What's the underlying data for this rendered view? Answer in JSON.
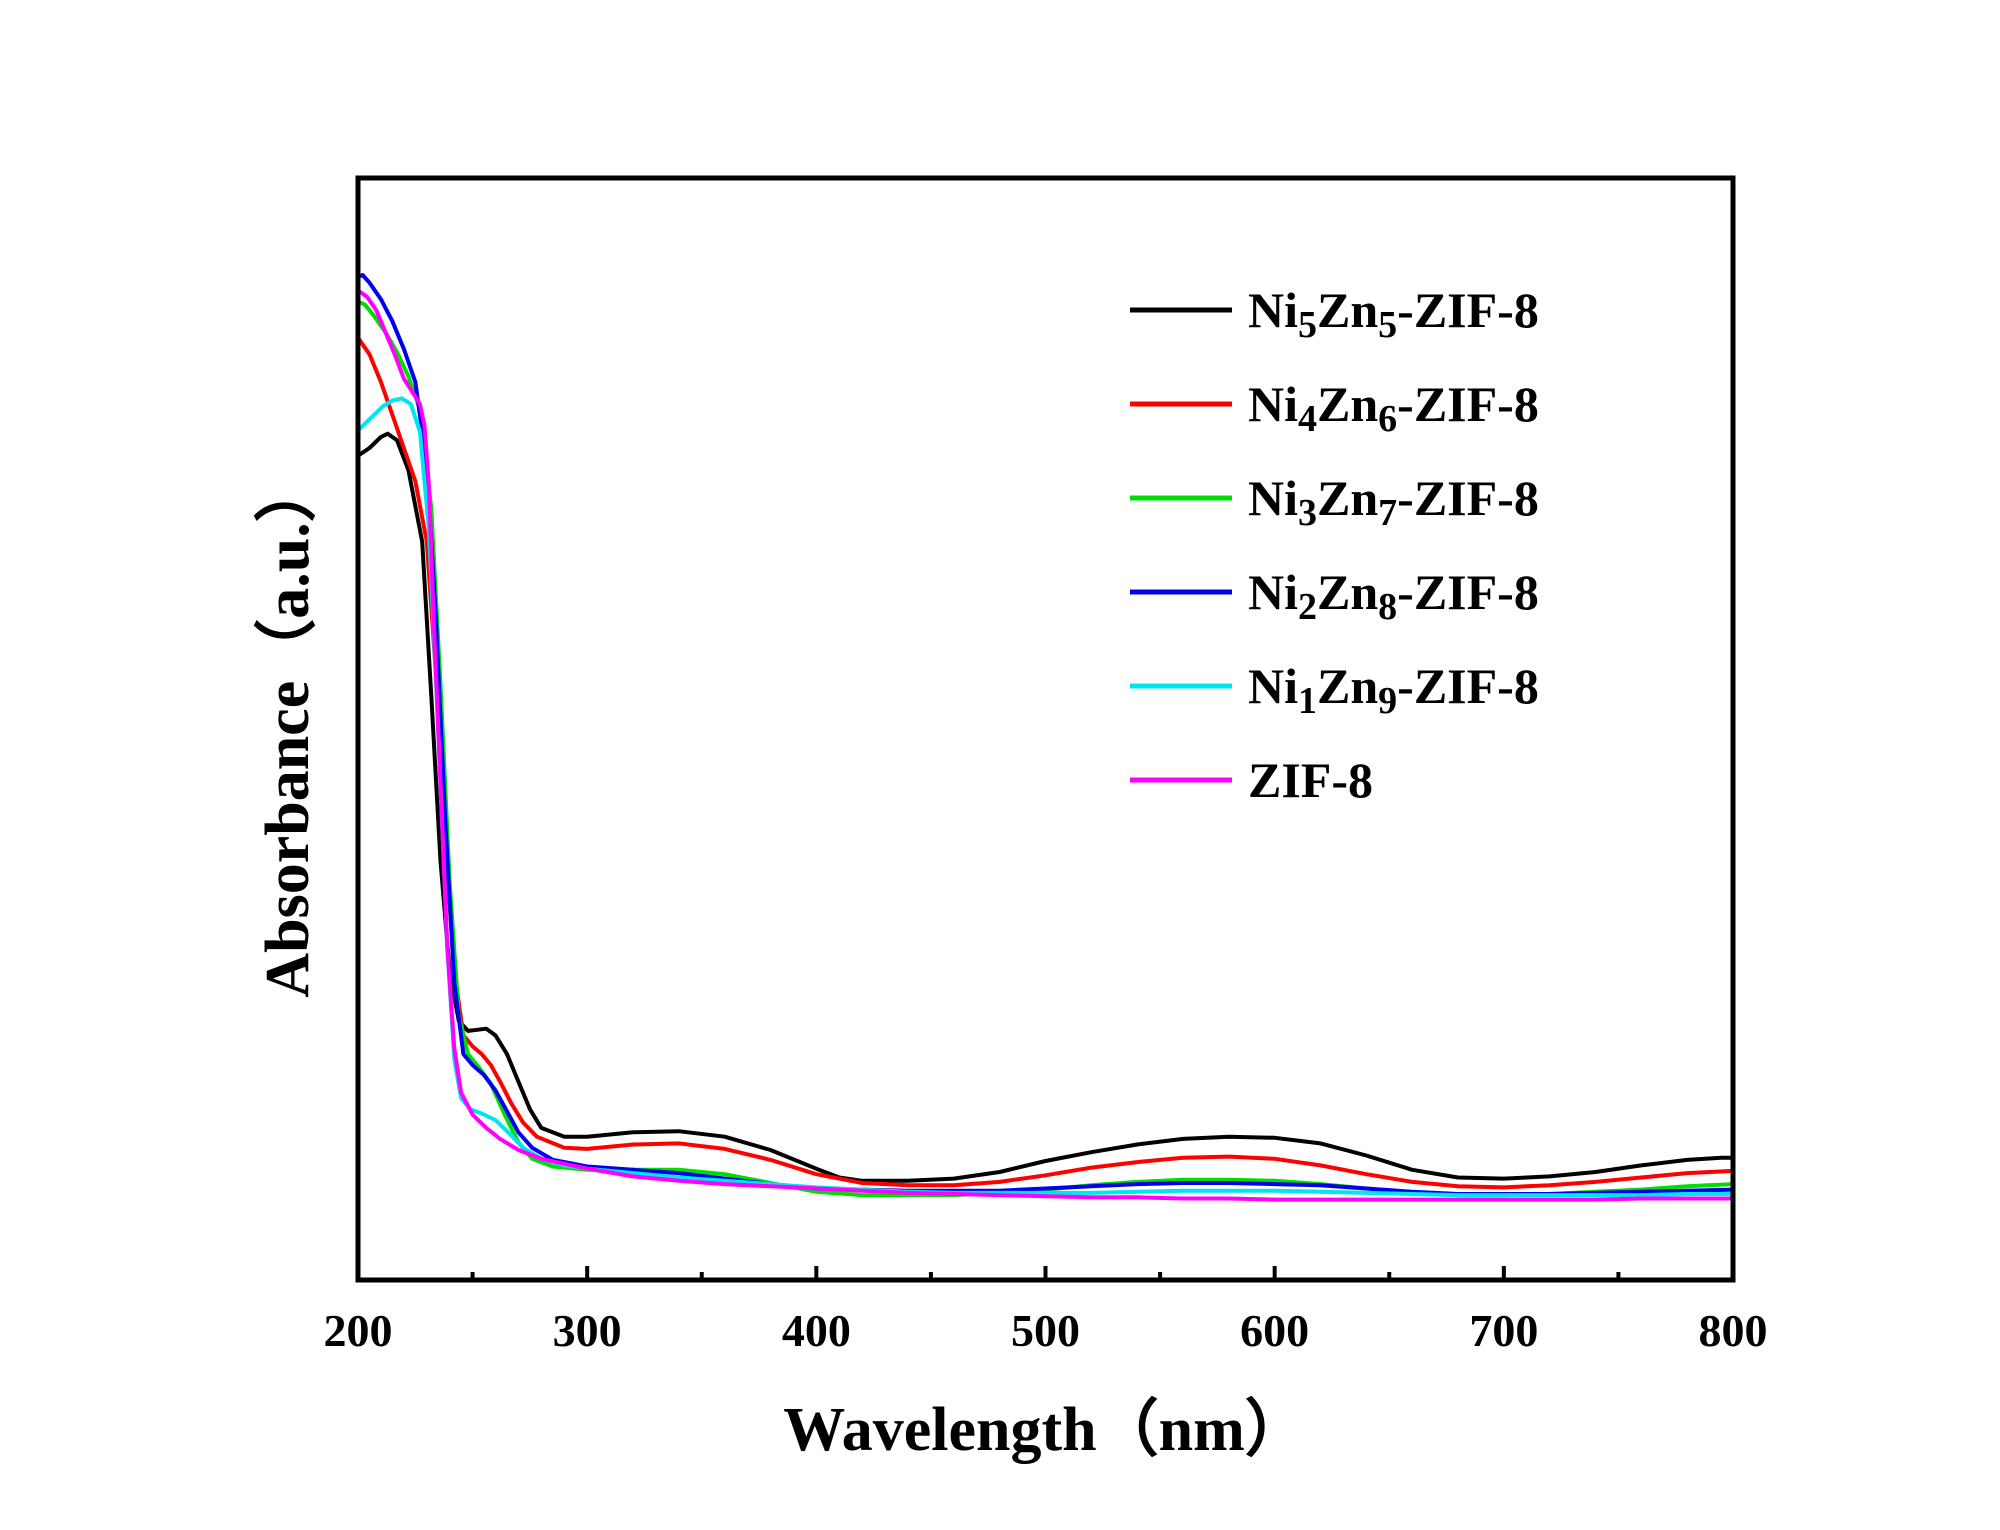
{
  "chart_data": {
    "type": "line",
    "xlabel": "Wavelength（nm）",
    "ylabel": "Absorbance（a.u.）",
    "xlim": [
      200,
      800
    ],
    "ylim": [
      0,
      1
    ],
    "x_ticks": [
      "200",
      "300",
      "400",
      "500",
      "600",
      "700",
      "800"
    ],
    "y_ticks": [],
    "legend_position": "top-right",
    "series": [
      {
        "name": "Ni5Zn5-ZIF-8",
        "label_parts": [
          "Ni",
          "5",
          "Zn",
          "5",
          "-ZIF-8"
        ],
        "color": "#000000",
        "points": [
          [
            200,
            0.748
          ],
          [
            205,
            0.755
          ],
          [
            210,
            0.765
          ],
          [
            213,
            0.768
          ],
          [
            217,
            0.762
          ],
          [
            222,
            0.735
          ],
          [
            228,
            0.67
          ],
          [
            232,
            0.53
          ],
          [
            236,
            0.38
          ],
          [
            240,
            0.28
          ],
          [
            244,
            0.235
          ],
          [
            248,
            0.226
          ],
          [
            252,
            0.227
          ],
          [
            256,
            0.228
          ],
          [
            260,
            0.222
          ],
          [
            265,
            0.205
          ],
          [
            270,
            0.18
          ],
          [
            275,
            0.155
          ],
          [
            280,
            0.138
          ],
          [
            290,
            0.13
          ],
          [
            300,
            0.13
          ],
          [
            320,
            0.134
          ],
          [
            340,
            0.135
          ],
          [
            360,
            0.13
          ],
          [
            380,
            0.118
          ],
          [
            400,
            0.101
          ],
          [
            410,
            0.093
          ],
          [
            420,
            0.09
          ],
          [
            440,
            0.09
          ],
          [
            460,
            0.092
          ],
          [
            480,
            0.098
          ],
          [
            500,
            0.108
          ],
          [
            520,
            0.116
          ],
          [
            540,
            0.123
          ],
          [
            560,
            0.128
          ],
          [
            580,
            0.13
          ],
          [
            600,
            0.129
          ],
          [
            620,
            0.124
          ],
          [
            640,
            0.113
          ],
          [
            660,
            0.1
          ],
          [
            680,
            0.093
          ],
          [
            700,
            0.092
          ],
          [
            720,
            0.094
          ],
          [
            740,
            0.098
          ],
          [
            760,
            0.104
          ],
          [
            780,
            0.109
          ],
          [
            795,
            0.111
          ],
          [
            800,
            0.111
          ]
        ]
      },
      {
        "name": "Ni4Zn6-ZIF-8",
        "label_parts": [
          "Ni",
          "4",
          "Zn",
          "6",
          "-ZIF-8"
        ],
        "color": "#ff0000",
        "points": [
          [
            200,
            0.855
          ],
          [
            205,
            0.84
          ],
          [
            210,
            0.815
          ],
          [
            215,
            0.785
          ],
          [
            220,
            0.755
          ],
          [
            225,
            0.725
          ],
          [
            230,
            0.67
          ],
          [
            234,
            0.55
          ],
          [
            238,
            0.4
          ],
          [
            242,
            0.28
          ],
          [
            246,
            0.222
          ],
          [
            250,
            0.212
          ],
          [
            254,
            0.205
          ],
          [
            258,
            0.195
          ],
          [
            262,
            0.18
          ],
          [
            267,
            0.16
          ],
          [
            272,
            0.143
          ],
          [
            278,
            0.13
          ],
          [
            290,
            0.12
          ],
          [
            300,
            0.119
          ],
          [
            320,
            0.123
          ],
          [
            340,
            0.124
          ],
          [
            360,
            0.119
          ],
          [
            380,
            0.109
          ],
          [
            400,
            0.096
          ],
          [
            420,
            0.088
          ],
          [
            440,
            0.086
          ],
          [
            460,
            0.086
          ],
          [
            480,
            0.089
          ],
          [
            500,
            0.095
          ],
          [
            520,
            0.102
          ],
          [
            540,
            0.107
          ],
          [
            560,
            0.111
          ],
          [
            580,
            0.112
          ],
          [
            600,
            0.11
          ],
          [
            620,
            0.104
          ],
          [
            640,
            0.096
          ],
          [
            660,
            0.089
          ],
          [
            680,
            0.085
          ],
          [
            700,
            0.084
          ],
          [
            720,
            0.086
          ],
          [
            740,
            0.089
          ],
          [
            760,
            0.093
          ],
          [
            780,
            0.097
          ],
          [
            800,
            0.099
          ]
        ]
      },
      {
        "name": "Ni3Zn7-ZIF-8",
        "label_parts": [
          "Ni",
          "3",
          "Zn",
          "7",
          "-ZIF-8"
        ],
        "color": "#00dd00",
        "points": [
          [
            200,
            0.888
          ],
          [
            203,
            0.885
          ],
          [
            207,
            0.875
          ],
          [
            212,
            0.86
          ],
          [
            217,
            0.842
          ],
          [
            222,
            0.82
          ],
          [
            227,
            0.79
          ],
          [
            232,
            0.7
          ],
          [
            236,
            0.54
          ],
          [
            240,
            0.36
          ],
          [
            244,
            0.24
          ],
          [
            248,
            0.205
          ],
          [
            252,
            0.195
          ],
          [
            258,
            0.178
          ],
          [
            264,
            0.15
          ],
          [
            270,
            0.125
          ],
          [
            276,
            0.11
          ],
          [
            285,
            0.103
          ],
          [
            300,
            0.1
          ],
          [
            320,
            0.1
          ],
          [
            340,
            0.1
          ],
          [
            360,
            0.096
          ],
          [
            380,
            0.088
          ],
          [
            400,
            0.08
          ],
          [
            420,
            0.077
          ],
          [
            440,
            0.077
          ],
          [
            460,
            0.077
          ],
          [
            480,
            0.079
          ],
          [
            500,
            0.082
          ],
          [
            520,
            0.086
          ],
          [
            540,
            0.089
          ],
          [
            560,
            0.091
          ],
          [
            580,
            0.091
          ],
          [
            600,
            0.09
          ],
          [
            620,
            0.087
          ],
          [
            640,
            0.083
          ],
          [
            660,
            0.079
          ],
          [
            680,
            0.077
          ],
          [
            700,
            0.077
          ],
          [
            720,
            0.078
          ],
          [
            740,
            0.08
          ],
          [
            760,
            0.082
          ],
          [
            780,
            0.085
          ],
          [
            800,
            0.087
          ]
        ]
      },
      {
        "name": "Ni2Zn8-ZIF-8",
        "label_parts": [
          "Ni",
          "2",
          "Zn",
          "8",
          "-ZIF-8"
        ],
        "color": "#0000ee",
        "points": [
          [
            200,
            0.91
          ],
          [
            202,
            0.912
          ],
          [
            205,
            0.905
          ],
          [
            210,
            0.89
          ],
          [
            215,
            0.87
          ],
          [
            220,
            0.845
          ],
          [
            225,
            0.815
          ],
          [
            230,
            0.74
          ],
          [
            234,
            0.6
          ],
          [
            238,
            0.42
          ],
          [
            242,
            0.27
          ],
          [
            246,
            0.205
          ],
          [
            250,
            0.195
          ],
          [
            255,
            0.186
          ],
          [
            260,
            0.172
          ],
          [
            265,
            0.153
          ],
          [
            270,
            0.134
          ],
          [
            276,
            0.12
          ],
          [
            285,
            0.109
          ],
          [
            300,
            0.103
          ],
          [
            320,
            0.1
          ],
          [
            340,
            0.097
          ],
          [
            360,
            0.092
          ],
          [
            380,
            0.087
          ],
          [
            400,
            0.083
          ],
          [
            420,
            0.082
          ],
          [
            440,
            0.081
          ],
          [
            460,
            0.081
          ],
          [
            480,
            0.081
          ],
          [
            500,
            0.083
          ],
          [
            520,
            0.085
          ],
          [
            540,
            0.087
          ],
          [
            560,
            0.088
          ],
          [
            580,
            0.088
          ],
          [
            600,
            0.087
          ],
          [
            620,
            0.086
          ],
          [
            640,
            0.083
          ],
          [
            660,
            0.08
          ],
          [
            680,
            0.078
          ],
          [
            700,
            0.078
          ],
          [
            720,
            0.078
          ],
          [
            740,
            0.079
          ],
          [
            760,
            0.08
          ],
          [
            780,
            0.081
          ],
          [
            800,
            0.082
          ]
        ]
      },
      {
        "name": "Ni1Zn9-ZIF-8",
        "label_parts": [
          "Ni",
          "1",
          "Zn",
          "9",
          "-ZIF-8"
        ],
        "color": "#00e5ee",
        "points": [
          [
            200,
            0.771
          ],
          [
            203,
            0.777
          ],
          [
            207,
            0.785
          ],
          [
            211,
            0.793
          ],
          [
            215,
            0.798
          ],
          [
            219,
            0.8
          ],
          [
            223,
            0.795
          ],
          [
            227,
            0.77
          ],
          [
            231,
            0.68
          ],
          [
            235,
            0.5
          ],
          [
            239,
            0.3
          ],
          [
            242,
            0.2
          ],
          [
            245,
            0.165
          ],
          [
            249,
            0.155
          ],
          [
            254,
            0.151
          ],
          [
            260,
            0.145
          ],
          [
            266,
            0.133
          ],
          [
            272,
            0.12
          ],
          [
            280,
            0.11
          ],
          [
            290,
            0.104
          ],
          [
            300,
            0.101
          ],
          [
            320,
            0.097
          ],
          [
            340,
            0.093
          ],
          [
            360,
            0.09
          ],
          [
            380,
            0.087
          ],
          [
            400,
            0.084
          ],
          [
            420,
            0.082
          ],
          [
            440,
            0.08
          ],
          [
            460,
            0.079
          ],
          [
            480,
            0.079
          ],
          [
            500,
            0.079
          ],
          [
            520,
            0.079
          ],
          [
            540,
            0.08
          ],
          [
            560,
            0.081
          ],
          [
            580,
            0.081
          ],
          [
            600,
            0.081
          ],
          [
            620,
            0.08
          ],
          [
            640,
            0.079
          ],
          [
            660,
            0.078
          ],
          [
            680,
            0.077
          ],
          [
            700,
            0.077
          ],
          [
            720,
            0.077
          ],
          [
            740,
            0.077
          ],
          [
            760,
            0.077
          ],
          [
            780,
            0.078
          ],
          [
            800,
            0.078
          ]
        ]
      },
      {
        "name": "ZIF-8",
        "label_parts": [
          "ZIF-8",
          "",
          "",
          "",
          ""
        ],
        "color": "#ff00ff",
        "points": [
          [
            200,
            0.898
          ],
          [
            204,
            0.892
          ],
          [
            208,
            0.88
          ],
          [
            212,
            0.86
          ],
          [
            216,
            0.84
          ],
          [
            220,
            0.818
          ],
          [
            224,
            0.805
          ],
          [
            227,
            0.795
          ],
          [
            229,
            0.775
          ],
          [
            231,
            0.72
          ],
          [
            233,
            0.6
          ],
          [
            236,
            0.45
          ],
          [
            239,
            0.3
          ],
          [
            242,
            0.21
          ],
          [
            245,
            0.17
          ],
          [
            250,
            0.15
          ],
          [
            256,
            0.138
          ],
          [
            262,
            0.128
          ],
          [
            270,
            0.118
          ],
          [
            280,
            0.11
          ],
          [
            300,
            0.101
          ],
          [
            320,
            0.094
          ],
          [
            340,
            0.09
          ],
          [
            360,
            0.087
          ],
          [
            380,
            0.085
          ],
          [
            400,
            0.083
          ],
          [
            420,
            0.081
          ],
          [
            440,
            0.079
          ],
          [
            460,
            0.078
          ],
          [
            480,
            0.077
          ],
          [
            500,
            0.076
          ],
          [
            520,
            0.075
          ],
          [
            540,
            0.075
          ],
          [
            560,
            0.074
          ],
          [
            580,
            0.074
          ],
          [
            600,
            0.073
          ],
          [
            620,
            0.073
          ],
          [
            640,
            0.073
          ],
          [
            660,
            0.073
          ],
          [
            680,
            0.073
          ],
          [
            700,
            0.073
          ],
          [
            720,
            0.073
          ],
          [
            740,
            0.073
          ],
          [
            760,
            0.074
          ],
          [
            780,
            0.074
          ],
          [
            800,
            0.074
          ]
        ]
      }
    ]
  }
}
